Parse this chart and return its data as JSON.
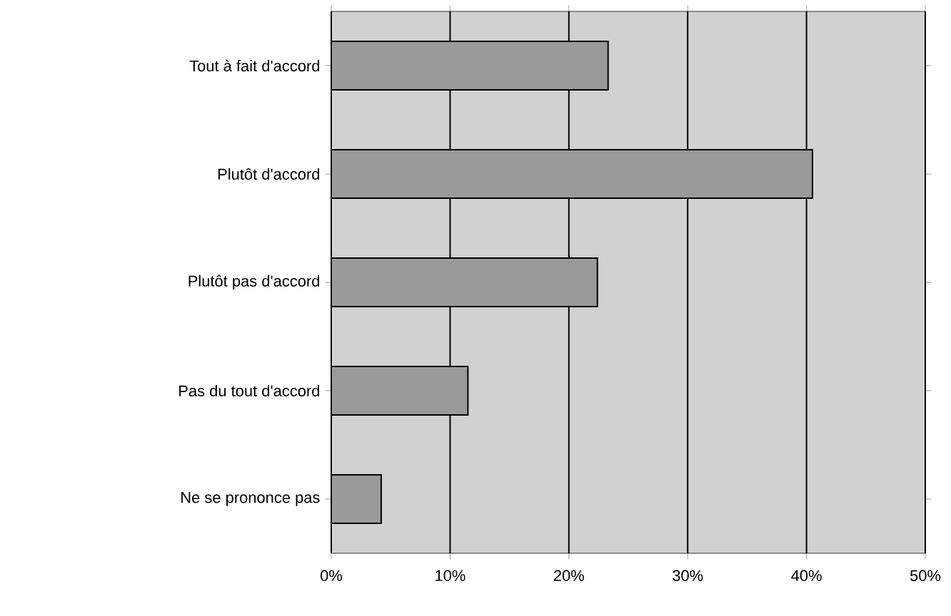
{
  "chart_data": {
    "type": "bar",
    "orientation": "horizontal",
    "categories": [
      "Tout à fait d'accord",
      "Plutôt d'accord",
      "Plutôt pas d'accord",
      "Pas du tout d'accord",
      "Ne se prononce pas"
    ],
    "values": [
      23.3,
      40.5,
      22.4,
      11.5,
      4.2
    ],
    "color": "#9a9a9a",
    "xlim": [
      0,
      50
    ],
    "xticks": [
      {
        "value": 0,
        "label": "0%"
      },
      {
        "value": 10,
        "label": "10%"
      },
      {
        "value": 20,
        "label": "20%"
      },
      {
        "value": 30,
        "label": "30%"
      },
      {
        "value": 40,
        "label": "40%"
      },
      {
        "value": 50,
        "label": "50%"
      }
    ],
    "grid": "x"
  }
}
